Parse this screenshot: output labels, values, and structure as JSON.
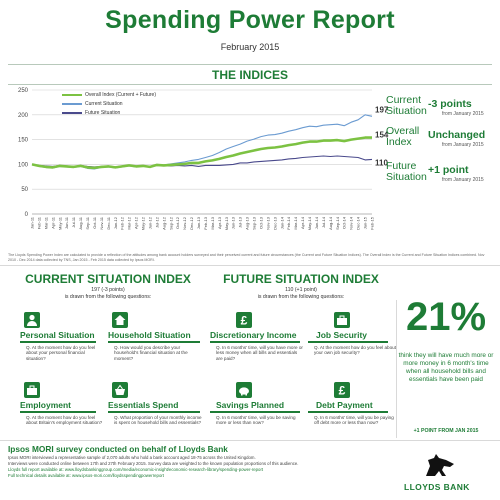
{
  "header": {
    "title": "Spending Power Report",
    "subtitle": "February 2015"
  },
  "indices_section": {
    "title": "THE INDICES",
    "legend": [
      "Overall Index (Current + Future)",
      "Current Situation",
      "Future Situation"
    ],
    "end_labels": [
      "197",
      "154",
      "110"
    ],
    "side": [
      {
        "label_line1": "Current",
        "label_line2": "Situation",
        "value": "-3 points",
        "sub": "from January 2015"
      },
      {
        "label_line1": "Overall",
        "label_line2": "Index",
        "value": "Unchanged",
        "sub": "from January 2015"
      },
      {
        "label_line1": "Future",
        "label_line2": "Situation",
        "value": "+1 point",
        "sub": "from January 2015"
      }
    ],
    "note": "The Lloyds Spending Power Index are calculated to provide a reflection of the attitudes among bank account holders surveyed and their perceived current and future circumstances (the Current and Future Situation Indices). The Overall Index is the Current and Future Situation Indices combined. Nov 2010 - Dec 2014 data collected by TNS, Jan 2015 - Feb 2015 data collected by Ipsos MORI."
  },
  "chart_data": {
    "type": "line",
    "title": "THE INDICES",
    "x": [
      "Jan-11",
      "Feb-11",
      "Mar-11",
      "Apr-11",
      "May-11",
      "Jun-11",
      "Jul-11",
      "Aug-11",
      "Sep-11",
      "Oct-11",
      "Nov-11",
      "Dec-11",
      "Jan-12",
      "Feb-12",
      "Mar-12",
      "Apr-12",
      "May-12",
      "Jun-12",
      "Jul-12",
      "Aug-12",
      "Sep-12",
      "Oct-12",
      "Nov-12",
      "Dec-12",
      "Jan-13",
      "Feb-13",
      "Mar-13",
      "Apr-13",
      "May-13",
      "Jun-13",
      "Jul-13",
      "Aug-13",
      "Sep-13",
      "Oct-13",
      "Nov-13",
      "Dec-13",
      "Jan-14",
      "Feb-14",
      "Mar-14",
      "Apr-14",
      "May-14",
      "Jun-14",
      "Jul-14",
      "Aug-14",
      "Sep-14",
      "Oct-14",
      "Nov-14",
      "Dec-14",
      "Jan-15",
      "Feb-15"
    ],
    "ylim": [
      0,
      250
    ],
    "yticks": [
      0,
      50,
      100,
      150,
      200,
      250
    ],
    "grid": true,
    "legend_position": "top-left",
    "series": [
      {
        "name": "Overall Index (Current + Future)",
        "color": "#7cc242",
        "values": [
          100,
          97,
          95,
          94,
          97,
          96,
          95,
          97,
          94,
          93,
          95,
          96,
          94,
          96,
          98,
          96,
          97,
          95,
          99,
          98,
          99,
          100,
          101,
          103,
          103,
          106,
          108,
          111,
          115,
          118,
          122,
          125,
          128,
          131,
          133,
          134,
          136,
          139,
          141,
          144,
          146,
          146,
          148,
          148,
          149,
          147,
          150,
          152,
          154,
          154
        ]
      },
      {
        "name": "Current Situation",
        "color": "#6b9bd1",
        "values": [
          100,
          96,
          94,
          93,
          96,
          95,
          94,
          96,
          92,
          91,
          94,
          95,
          93,
          95,
          97,
          95,
          97,
          94,
          100,
          99,
          101,
          103,
          105,
          108,
          110,
          114,
          118,
          124,
          131,
          136,
          141,
          147,
          151,
          156,
          159,
          160,
          163,
          167,
          170,
          174,
          177,
          176,
          179,
          180,
          181,
          178,
          185,
          190,
          200,
          197
        ]
      },
      {
        "name": "Future Situation",
        "color": "#4a4a8c",
        "values": [
          100,
          98,
          97,
          96,
          98,
          97,
          96,
          98,
          96,
          95,
          96,
          97,
          95,
          97,
          98,
          97,
          97,
          96,
          98,
          97,
          97,
          98,
          97,
          98,
          96,
          98,
          98,
          98,
          99,
          100,
          103,
          103,
          105,
          106,
          107,
          108,
          109,
          111,
          112,
          114,
          115,
          116,
          117,
          116,
          117,
          116,
          115,
          114,
          109,
          110
        ]
      }
    ]
  },
  "current_index": {
    "title": "CURRENT SITUATION INDEX",
    "sub1": "197 (-3 points)",
    "sub2": "is drawn from the following questions:",
    "items": [
      {
        "name": "Personal Situation",
        "q": "Q. At the moment how do you feel about your personal financial situation?"
      },
      {
        "name": "Household Situation",
        "q": "Q. How would you describe your household's financial situation at the moment?"
      },
      {
        "name": "Employment",
        "q": "Q. At the moment how do you feel about Britain's employment situation?"
      },
      {
        "name": "Essentials Spend",
        "q": "Q. What proportion of your monthly income is spent on household bills and essentials?"
      }
    ]
  },
  "future_index": {
    "title": "FUTURE SITUATION INDEX",
    "sub1": "110 (+1 point)",
    "sub2": "is drawn from the following questions:",
    "items": [
      {
        "name": "Discretionary Income",
        "q": "Q. In 6 months' time, will you have more or less money when all bills and essentials are paid?"
      },
      {
        "name": "Job Security",
        "q": "Q. At the moment how do you feel about your own job security?"
      },
      {
        "name": "Savings Planned",
        "q": "Q. In 6 months' time, will you be saving more or less than now?"
      },
      {
        "name": "Debt Payment",
        "q": "Q. In 6 months' time, will you be paying off debt more or less than now?"
      }
    ]
  },
  "highlight": {
    "percent": "21%",
    "text": "think they will have much more or more money in 6 month's time when all household bills and essentials have been paid",
    "note": "+1 POINT FROM JAN 2015"
  },
  "footer": {
    "title": "Ipsos MORI survey conducted on behalf of Lloyds Bank",
    "line1": "Ipsos MORI interviewed a representative sample of 2,070 adults who hold a bank account aged 18-75 across the United Kingdom.",
    "line2": "Interviews were conducted online between 17th and 27th February 2015. Survey data are weighted to the known population proportions of this audience.",
    "line3": "Lloyds full report available at: www.lloydsbankinggroup.com/media/economic-insight/economic-research-library/spending-power-report",
    "line4": "Full technical details available at: www.ipsos-mori.com/lloydsspendingpowerreport",
    "brand": "LLOYDS BANK"
  }
}
